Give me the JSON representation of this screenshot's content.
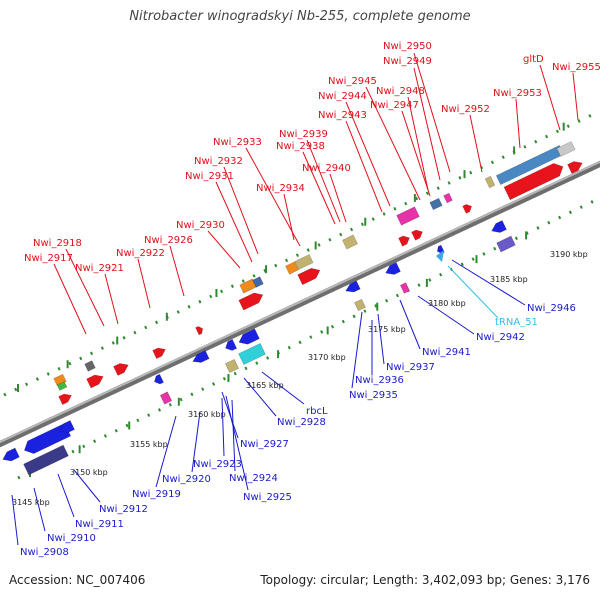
{
  "title": "Nitrobacter winogradskyi Nb-255, complete genome",
  "accession": "Accession: NC_007406",
  "topology": "Topology: circular",
  "length": "Length: 3,402,093 bp",
  "genes": "Genes: 3,176",
  "separator": "; ",
  "colors": {
    "forward_label": "#e0101a",
    "reverse_label": "#1a1acc",
    "rna_label": "#30c0e8",
    "backbone": "#8a8a8a",
    "tick": "#2f8a2f"
  },
  "scale": {
    "unit": "kbp",
    "ticks": [
      "3145 kbp",
      "3150 kbp",
      "3155 kbp",
      "3160 kbp",
      "3165 kbp",
      "3170 kbp",
      "3175 kbp",
      "3180 kbp",
      "3185 kbp",
      "3190 kbp"
    ]
  },
  "forward_labels": [
    "Nwi_2950",
    "Nwi_2949",
    "gltD",
    "Nwi_2955",
    "Nwi_2945",
    "Nwi_2948",
    "Nwi_2944",
    "Nwi_2947",
    "Nwi_2953",
    "Nwi_2952",
    "Nwi_2943",
    "Nwi_2939",
    "Nwi_2933",
    "Nwi_2938",
    "Nwi_2932",
    "Nwi_2940",
    "Nwi_2931",
    "Nwi_2934",
    "Nwi_2930",
    "Nwi_2926",
    "Nwi_2918",
    "Nwi_2922",
    "Nwi_2917",
    "Nwi_2921"
  ],
  "reverse_labels": [
    "Nwi_2946",
    "Nwi_2942",
    "Nwi_2941",
    "Nwi_2937",
    "Nwi_2936",
    "Nwi_2935",
    "rbcL",
    "Nwi_2928",
    "Nwi_2927",
    "Nwi_2923",
    "Nwi_2924",
    "Nwi_2925",
    "Nwi_2920",
    "Nwi_2919",
    "Nwi_2912",
    "Nwi_2911",
    "Nwi_2910",
    "Nwi_2908"
  ],
  "rna_labels": [
    "tRNA_51"
  ]
}
